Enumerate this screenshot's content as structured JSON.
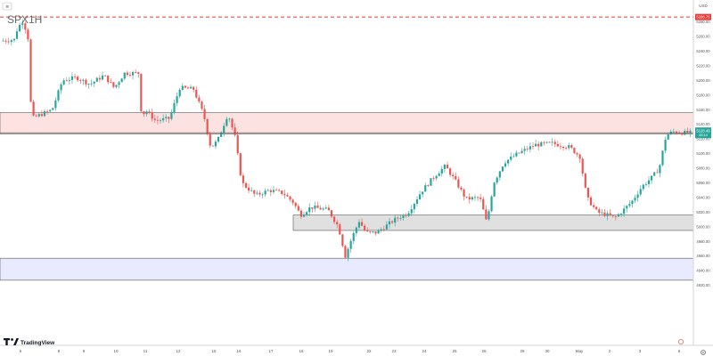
{
  "symbol": "SPX1H",
  "menu_glyph": "≡",
  "currency": "USD",
  "branding": {
    "logo_text": "TradingView"
  },
  "time_axis_icon": "gear-icon",
  "colors": {
    "up": "#26a69a",
    "down": "#ef5350",
    "resistance_zone": "#fde2e2",
    "support_zone": "#e0e0e0",
    "demand_zone": "#e8ebfd",
    "dashed_level": "#e53935",
    "price_tag": "#26a69a"
  },
  "chart_data": {
    "type": "candlestick",
    "title": "SPX1H",
    "y_axis_label": "USD",
    "ylim": [
      4838,
      5310
    ],
    "y_ticks": [
      {
        "value": 5280,
        "label": "5280.00"
      },
      {
        "value": 5260,
        "label": "5260.00"
      },
      {
        "value": 5240,
        "label": "5240.00"
      },
      {
        "value": 5220,
        "label": "5220.00"
      },
      {
        "value": 5200,
        "label": "5200.00"
      },
      {
        "value": 5180,
        "label": "5180.00"
      },
      {
        "value": 5160,
        "label": "5160.00"
      },
      {
        "value": 5140,
        "label": "5140.00"
      },
      {
        "value": 5120,
        "label": "5120.00"
      },
      {
        "value": 5100,
        "label": "5100.00"
      },
      {
        "value": 5080,
        "label": "5080.00"
      },
      {
        "value": 5060,
        "label": "5060.00"
      },
      {
        "value": 5040,
        "label": "5040.00"
      },
      {
        "value": 5020,
        "label": "5020.00"
      },
      {
        "value": 5000,
        "label": "5000.00"
      },
      {
        "value": 4980,
        "label": "4980.00"
      },
      {
        "value": 4960,
        "label": "4960.00"
      },
      {
        "value": 4940,
        "label": "4940.00"
      },
      {
        "value": 4920,
        "label": "4920.00"
      }
    ],
    "x_ticks": [
      "5",
      "8",
      "9",
      "10",
      "11",
      "12",
      "15",
      "16",
      "17",
      "18",
      "19",
      "22",
      "23",
      "24",
      "25",
      "26",
      "29",
      "30",
      "May",
      "2",
      "3",
      "6"
    ],
    "zones": [
      {
        "name": "resistance",
        "from": 5127,
        "to": 5156
      },
      {
        "name": "support",
        "from": 4995,
        "to": 5016
      },
      {
        "name": "demand",
        "from": 4927,
        "to": 4957
      }
    ],
    "dashed_level": {
      "value": 5286.75,
      "label": "5286.75"
    },
    "last_price": {
      "value": 5128.49,
      "label": "5128.49",
      "sublabel": "45:14"
    },
    "price_path": [
      [
        0,
        5254
      ],
      [
        0.02,
        5256
      ],
      [
        0.025,
        5272
      ],
      [
        0.033,
        5282
      ],
      [
        0.04,
        5258
      ],
      [
        0.045,
        5148
      ],
      [
        0.06,
        5154
      ],
      [
        0.075,
        5160
      ],
      [
        0.09,
        5200
      ],
      [
        0.11,
        5204
      ],
      [
        0.13,
        5195
      ],
      [
        0.15,
        5207
      ],
      [
        0.165,
        5190
      ],
      [
        0.18,
        5210
      ],
      [
        0.2,
        5210
      ],
      [
        0.205,
        5148
      ],
      [
        0.21,
        5160
      ],
      [
        0.225,
        5145
      ],
      [
        0.245,
        5148
      ],
      [
        0.26,
        5190
      ],
      [
        0.28,
        5188
      ],
      [
        0.295,
        5152
      ],
      [
        0.305,
        5108
      ],
      [
        0.315,
        5118
      ],
      [
        0.33,
        5155
      ],
      [
        0.34,
        5123
      ],
      [
        0.35,
        5060
      ],
      [
        0.37,
        5043
      ],
      [
        0.39,
        5050
      ],
      [
        0.41,
        5046
      ],
      [
        0.425,
        5033
      ],
      [
        0.435,
        5016
      ],
      [
        0.45,
        5027
      ],
      [
        0.475,
        5023
      ],
      [
        0.49,
        5000
      ],
      [
        0.5,
        4960
      ],
      [
        0.51,
        4986
      ],
      [
        0.52,
        5008
      ],
      [
        0.53,
        4992
      ],
      [
        0.545,
        4992
      ],
      [
        0.56,
        5002
      ],
      [
        0.575,
        5012
      ],
      [
        0.59,
        5018
      ],
      [
        0.61,
        5048
      ],
      [
        0.63,
        5070
      ],
      [
        0.645,
        5083
      ],
      [
        0.66,
        5062
      ],
      [
        0.675,
        5038
      ],
      [
        0.695,
        5040
      ],
      [
        0.705,
        5005
      ],
      [
        0.715,
        5060
      ],
      [
        0.73,
        5088
      ],
      [
        0.75,
        5100
      ],
      [
        0.775,
        5112
      ],
      [
        0.8,
        5114
      ],
      [
        0.825,
        5109
      ],
      [
        0.84,
        5096
      ],
      [
        0.85,
        5040
      ],
      [
        0.865,
        5020
      ],
      [
        0.88,
        5016
      ],
      [
        0.89,
        5012
      ],
      [
        0.9,
        5020
      ],
      [
        0.915,
        5034
      ],
      [
        0.93,
        5055
      ],
      [
        0.945,
        5068
      ],
      [
        0.955,
        5080
      ],
      [
        0.965,
        5125
      ],
      [
        0.975,
        5130
      ],
      [
        0.99,
        5128.5
      ]
    ]
  }
}
